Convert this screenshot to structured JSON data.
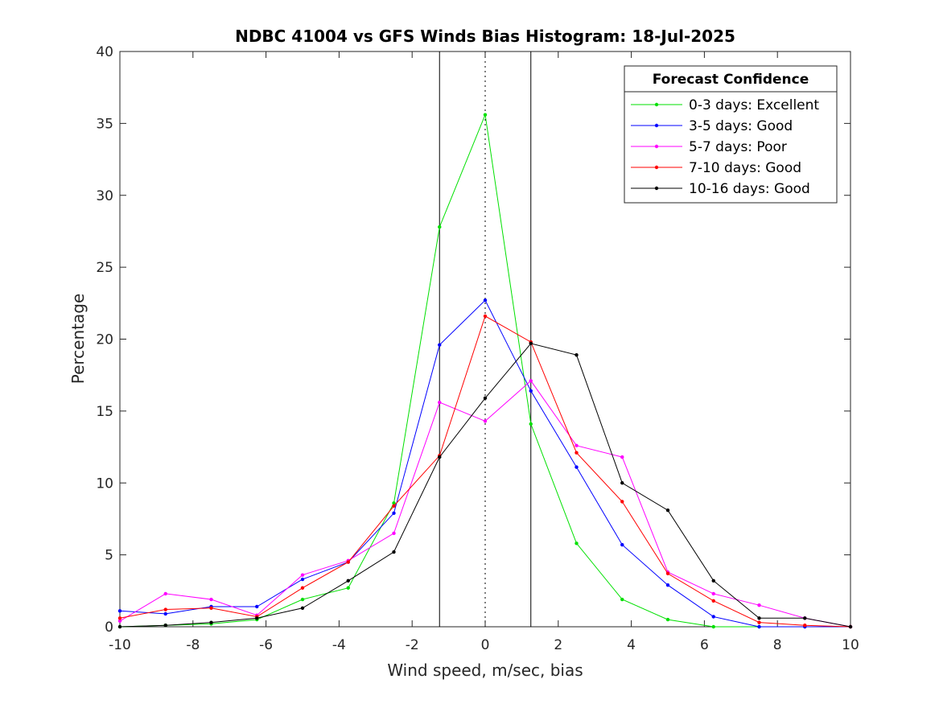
{
  "chart_data": {
    "type": "line",
    "title": "NDBC 41004 vs GFS Winds Bias Histogram: 18-Jul-2025",
    "xlabel": "Wind speed, m/sec, bias",
    "ylabel": "Percentage",
    "xlim": [
      -10,
      10
    ],
    "ylim": [
      0,
      40
    ],
    "xticks": [
      -10,
      -8,
      -6,
      -4,
      -2,
      0,
      2,
      4,
      6,
      8,
      10
    ],
    "yticks": [
      0,
      5,
      10,
      15,
      20,
      25,
      30,
      35,
      40
    ],
    "grid": false,
    "legend": {
      "title": "Forecast Confidence",
      "placement": "top-right"
    },
    "x": [
      -10,
      -8.75,
      -7.5,
      -6.25,
      -5,
      -3.75,
      -2.5,
      -1.25,
      0,
      1.25,
      2.5,
      3.75,
      5,
      6.25,
      7.5,
      8.75,
      10
    ],
    "series": [
      {
        "name": "0-3 days: Excellent",
        "color": "#00e000",
        "values": [
          0,
          0.1,
          0.2,
          0.5,
          1.9,
          2.7,
          8.6,
          27.8,
          35.6,
          14.1,
          5.8,
          1.9,
          0.5,
          0,
          0,
          0,
          0
        ]
      },
      {
        "name": "3-5 days: Good",
        "color": "#0000ff",
        "values": [
          1.1,
          0.9,
          1.4,
          1.4,
          3.3,
          4.5,
          7.9,
          19.6,
          22.7,
          16.4,
          11.1,
          5.7,
          2.9,
          0.7,
          0,
          0,
          0
        ]
      },
      {
        "name": "5-7 days: Poor",
        "color": "#ff00ff",
        "values": [
          0.4,
          2.3,
          1.9,
          0.8,
          3.6,
          4.6,
          6.5,
          15.6,
          14.3,
          17.1,
          12.6,
          11.8,
          3.8,
          2.3,
          1.5,
          0.6,
          0
        ]
      },
      {
        "name": "7-10 days: Good",
        "color": "#ff0000",
        "values": [
          0.6,
          1.2,
          1.3,
          0.7,
          2.7,
          4.5,
          8.4,
          11.9,
          21.6,
          19.8,
          12.1,
          8.7,
          3.7,
          1.8,
          0.3,
          0.1,
          0
        ]
      },
      {
        "name": "10-16 days: Good",
        "color": "#000000",
        "values": [
          0,
          0.1,
          0.3,
          0.6,
          1.3,
          3.2,
          5.2,
          11.8,
          15.9,
          19.7,
          18.9,
          10.0,
          8.1,
          3.2,
          0.6,
          0.6,
          0
        ]
      }
    ],
    "reference_lines": {
      "solid_x": [
        -1.25,
        1.25
      ],
      "dotted_x": [
        0
      ],
      "color": "#000000"
    }
  }
}
